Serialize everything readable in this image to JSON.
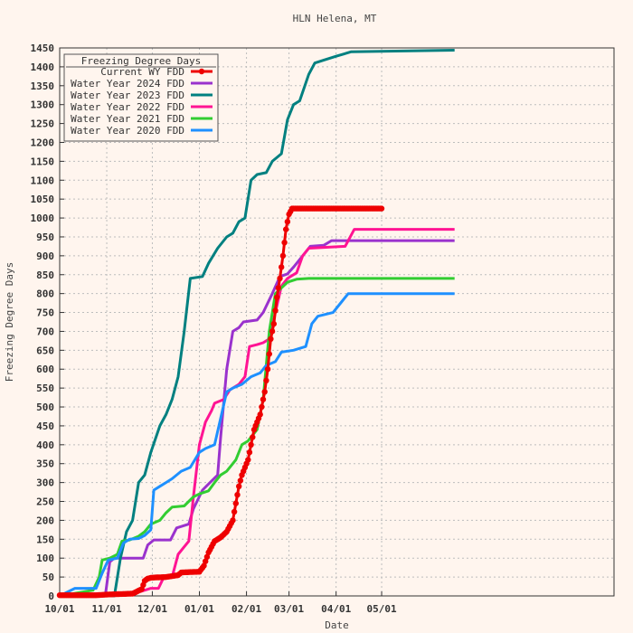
{
  "chart_data": {
    "type": "line",
    "title": "HLN Helena, MT",
    "xlabel": "Date",
    "ylabel": "Freezing Degree Days",
    "ylim": [
      0,
      1450
    ],
    "yticks": [
      0,
      50,
      100,
      150,
      200,
      250,
      300,
      350,
      400,
      450,
      500,
      550,
      600,
      650,
      700,
      750,
      800,
      850,
      900,
      950,
      1000,
      1050,
      1100,
      1150,
      1200,
      1250,
      1300,
      1350,
      1400,
      1450
    ],
    "xlim": [
      0,
      365
    ],
    "xticks": [
      {
        "day": 0,
        "label": "10/01"
      },
      {
        "day": 31,
        "label": "11/01"
      },
      {
        "day": 61,
        "label": "12/01"
      },
      {
        "day": 92,
        "label": "01/01"
      },
      {
        "day": 123,
        "label": "02/01"
      },
      {
        "day": 151,
        "label": "03/01"
      },
      {
        "day": 182,
        "label": "04/01"
      },
      {
        "day": 212,
        "label": "05/01"
      }
    ],
    "grid": true,
    "legend": {
      "title": "Freezing Degree Days",
      "position": "top-left"
    },
    "series": [
      {
        "name": "Current WY FDD",
        "color": "#ee0000",
        "markers": true,
        "points": [
          [
            0,
            2
          ],
          [
            24,
            2
          ],
          [
            33,
            4
          ],
          [
            40,
            5
          ],
          [
            48,
            6
          ],
          [
            54,
            18
          ],
          [
            56,
            40
          ],
          [
            58,
            46
          ],
          [
            60,
            48
          ],
          [
            64,
            49
          ],
          [
            70,
            50
          ],
          [
            78,
            55
          ],
          [
            80,
            62
          ],
          [
            85,
            63
          ],
          [
            92,
            64
          ],
          [
            95,
            80
          ],
          [
            98,
            115
          ],
          [
            102,
            145
          ],
          [
            106,
            155
          ],
          [
            110,
            170
          ],
          [
            114,
            200
          ],
          [
            118,
            290
          ],
          [
            120,
            320
          ],
          [
            122,
            340
          ],
          [
            124,
            360
          ],
          [
            126,
            400
          ],
          [
            128,
            440
          ],
          [
            130,
            460
          ],
          [
            132,
            480
          ],
          [
            135,
            540
          ],
          [
            137,
            600
          ],
          [
            139,
            680
          ],
          [
            141,
            720
          ],
          [
            143,
            790
          ],
          [
            145,
            840
          ],
          [
            147,
            900
          ],
          [
            149,
            970
          ],
          [
            151,
            1010
          ],
          [
            153,
            1025
          ],
          [
            156,
            1025
          ],
          [
            212,
            1025
          ]
        ]
      },
      {
        "name": "Water Year 2024 FDD",
        "color": "#9a32cd",
        "markers": false,
        "points": [
          [
            0,
            0
          ],
          [
            30,
            0
          ],
          [
            33,
            90
          ],
          [
            36,
            100
          ],
          [
            55,
            100
          ],
          [
            58,
            135
          ],
          [
            62,
            148
          ],
          [
            73,
            148
          ],
          [
            77,
            180
          ],
          [
            85,
            190
          ],
          [
            88,
            230
          ],
          [
            94,
            280
          ],
          [
            99,
            300
          ],
          [
            104,
            320
          ],
          [
            106,
            420
          ],
          [
            110,
            600
          ],
          [
            114,
            700
          ],
          [
            118,
            710
          ],
          [
            121,
            725
          ],
          [
            130,
            730
          ],
          [
            134,
            750
          ],
          [
            140,
            800
          ],
          [
            145,
            845
          ],
          [
            150,
            852
          ],
          [
            154,
            870
          ],
          [
            160,
            900
          ],
          [
            165,
            925
          ],
          [
            174,
            928
          ],
          [
            179,
            940
          ],
          [
            260,
            940
          ]
        ]
      },
      {
        "name": "Water Year 2023 FDD",
        "color": "#008080",
        "markers": false,
        "points": [
          [
            0,
            0
          ],
          [
            36,
            0
          ],
          [
            40,
            100
          ],
          [
            44,
            170
          ],
          [
            48,
            200
          ],
          [
            52,
            300
          ],
          [
            56,
            320
          ],
          [
            60,
            380
          ],
          [
            66,
            450
          ],
          [
            70,
            480
          ],
          [
            74,
            520
          ],
          [
            78,
            580
          ],
          [
            82,
            700
          ],
          [
            86,
            840
          ],
          [
            94,
            845
          ],
          [
            98,
            880
          ],
          [
            104,
            920
          ],
          [
            110,
            950
          ],
          [
            114,
            960
          ],
          [
            118,
            990
          ],
          [
            122,
            1000
          ],
          [
            126,
            1100
          ],
          [
            130,
            1115
          ],
          [
            136,
            1120
          ],
          [
            140,
            1150
          ],
          [
            146,
            1170
          ],
          [
            150,
            1260
          ],
          [
            154,
            1300
          ],
          [
            158,
            1310
          ],
          [
            164,
            1380
          ],
          [
            168,
            1410
          ],
          [
            174,
            1418
          ],
          [
            182,
            1428
          ],
          [
            192,
            1440
          ],
          [
            260,
            1444
          ]
        ]
      },
      {
        "name": "Water Year 2022 FDD",
        "color": "#ff1493",
        "markers": false,
        "points": [
          [
            0,
            0
          ],
          [
            40,
            5
          ],
          [
            52,
            10
          ],
          [
            60,
            20
          ],
          [
            65,
            20
          ],
          [
            68,
            45
          ],
          [
            74,
            50
          ],
          [
            78,
            110
          ],
          [
            82,
            130
          ],
          [
            85,
            145
          ],
          [
            88,
            260
          ],
          [
            92,
            400
          ],
          [
            96,
            460
          ],
          [
            100,
            490
          ],
          [
            102,
            510
          ],
          [
            108,
            520
          ],
          [
            112,
            545
          ],
          [
            118,
            560
          ],
          [
            122,
            580
          ],
          [
            125,
            660
          ],
          [
            130,
            665
          ],
          [
            134,
            670
          ],
          [
            138,
            680
          ],
          [
            142,
            750
          ],
          [
            146,
            820
          ],
          [
            150,
            840
          ],
          [
            156,
            855
          ],
          [
            160,
            900
          ],
          [
            164,
            920
          ],
          [
            188,
            925
          ],
          [
            194,
            970
          ],
          [
            260,
            970
          ]
        ]
      },
      {
        "name": "Water Year 2021 FDD",
        "color": "#32cd32",
        "markers": false,
        "points": [
          [
            0,
            0
          ],
          [
            22,
            15
          ],
          [
            26,
            50
          ],
          [
            28,
            95
          ],
          [
            33,
            100
          ],
          [
            38,
            110
          ],
          [
            41,
            145
          ],
          [
            46,
            148
          ],
          [
            52,
            158
          ],
          [
            56,
            170
          ],
          [
            60,
            190
          ],
          [
            66,
            200
          ],
          [
            70,
            220
          ],
          [
            74,
            235
          ],
          [
            82,
            238
          ],
          [
            88,
            262
          ],
          [
            92,
            270
          ],
          [
            98,
            278
          ],
          [
            102,
            300
          ],
          [
            106,
            320
          ],
          [
            110,
            330
          ],
          [
            116,
            360
          ],
          [
            120,
            400
          ],
          [
            124,
            410
          ],
          [
            130,
            440
          ],
          [
            134,
            520
          ],
          [
            138,
            700
          ],
          [
            142,
            800
          ],
          [
            146,
            815
          ],
          [
            150,
            830
          ],
          [
            156,
            838
          ],
          [
            164,
            840
          ],
          [
            260,
            840
          ]
        ]
      },
      {
        "name": "Water Year 2020 FDD",
        "color": "#1e90ff",
        "markers": false,
        "points": [
          [
            0,
            0
          ],
          [
            10,
            20
          ],
          [
            24,
            20
          ],
          [
            28,
            60
          ],
          [
            32,
            95
          ],
          [
            38,
            100
          ],
          [
            42,
            140
          ],
          [
            46,
            150
          ],
          [
            52,
            152
          ],
          [
            56,
            160
          ],
          [
            60,
            175
          ],
          [
            62,
            280
          ],
          [
            66,
            290
          ],
          [
            70,
            300
          ],
          [
            74,
            310
          ],
          [
            80,
            330
          ],
          [
            86,
            340
          ],
          [
            92,
            380
          ],
          [
            96,
            390
          ],
          [
            102,
            400
          ],
          [
            106,
            470
          ],
          [
            110,
            540
          ],
          [
            114,
            550
          ],
          [
            120,
            560
          ],
          [
            126,
            580
          ],
          [
            132,
            590
          ],
          [
            136,
            610
          ],
          [
            142,
            620
          ],
          [
            146,
            645
          ],
          [
            154,
            650
          ],
          [
            162,
            660
          ],
          [
            166,
            720
          ],
          [
            170,
            740
          ],
          [
            180,
            750
          ],
          [
            186,
            780
          ],
          [
            190,
            800
          ],
          [
            260,
            800
          ]
        ]
      }
    ]
  }
}
